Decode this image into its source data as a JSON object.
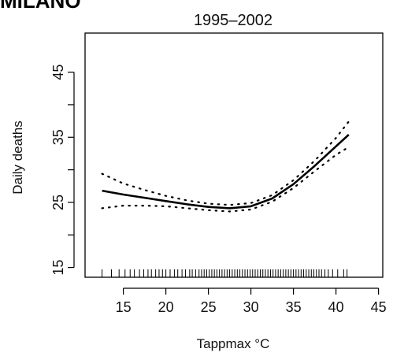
{
  "header": {
    "title": "MILANO"
  },
  "chart_data": {
    "type": "line",
    "title": "1995–2002",
    "xlabel": "Tappmax °C",
    "ylabel": "Daily deaths",
    "xlim": [
      10.5,
      45.5
    ],
    "ylim": [
      13.5,
      51
    ],
    "x_ticks": [
      15,
      20,
      25,
      30,
      35,
      40,
      45
    ],
    "y_ticks": [
      15,
      25,
      35,
      45
    ],
    "grid": false,
    "legend": "none",
    "series": [
      {
        "role": "fitted",
        "style": "solid",
        "x": [
          12.5,
          15,
          17.5,
          20,
          22.5,
          25,
          27.5,
          30,
          32.5,
          35,
          37.5,
          40,
          41.5
        ],
        "y": [
          26.8,
          26.2,
          25.7,
          25.2,
          24.7,
          24.3,
          24.1,
          24.4,
          25.6,
          27.8,
          30.6,
          33.6,
          35.4
        ]
      },
      {
        "role": "upper-bound",
        "style": "dotted",
        "x": [
          12.5,
          15,
          17.5,
          20,
          22.5,
          25,
          27.5,
          30,
          32.5,
          35,
          37.5,
          40,
          41.5
        ],
        "y": [
          29.4,
          27.9,
          26.9,
          26.0,
          25.3,
          24.8,
          24.6,
          24.9,
          26.1,
          28.4,
          31.4,
          34.9,
          37.4
        ]
      },
      {
        "role": "lower-bound",
        "style": "dotted",
        "x": [
          12.5,
          15,
          17.5,
          20,
          22.5,
          25,
          27.5,
          30,
          32.5,
          35,
          37.5,
          40,
          41.5
        ],
        "y": [
          24.1,
          24.5,
          24.5,
          24.4,
          24.1,
          23.8,
          23.6,
          23.9,
          25.1,
          27.2,
          29.8,
          32.3,
          33.5
        ]
      }
    ],
    "rug_x": [
      12.5,
      13.6,
      14.5,
      15.2,
      15.8,
      16.3,
      16.9,
      17.4,
      17.9,
      18.3,
      18.8,
      19.2,
      19.6,
      20.0,
      20.5,
      21.0,
      21.4,
      21.9,
      22.3,
      22.8,
      23.1,
      23.5,
      23.9,
      24.2,
      24.5,
      24.8,
      25.1,
      25.4,
      25.7,
      26.0,
      26.3,
      26.6,
      26.9,
      27.2,
      27.5,
      27.8,
      28.1,
      28.4,
      28.7,
      29.0,
      29.3,
      29.6,
      29.9,
      30.2,
      30.5,
      30.8,
      31.1,
      31.4,
      31.7,
      32.0,
      32.3,
      32.6,
      32.9,
      33.2,
      33.5,
      33.8,
      34.1,
      34.4,
      34.7,
      35.0,
      35.3,
      35.6,
      35.9,
      36.2,
      36.5,
      36.8,
      37.1,
      37.4,
      37.7,
      38.0,
      38.3,
      38.7,
      39.1,
      39.6,
      40.2,
      40.9,
      41.3
    ]
  },
  "colors": {
    "line": "#000000",
    "background": "#ffffff"
  }
}
